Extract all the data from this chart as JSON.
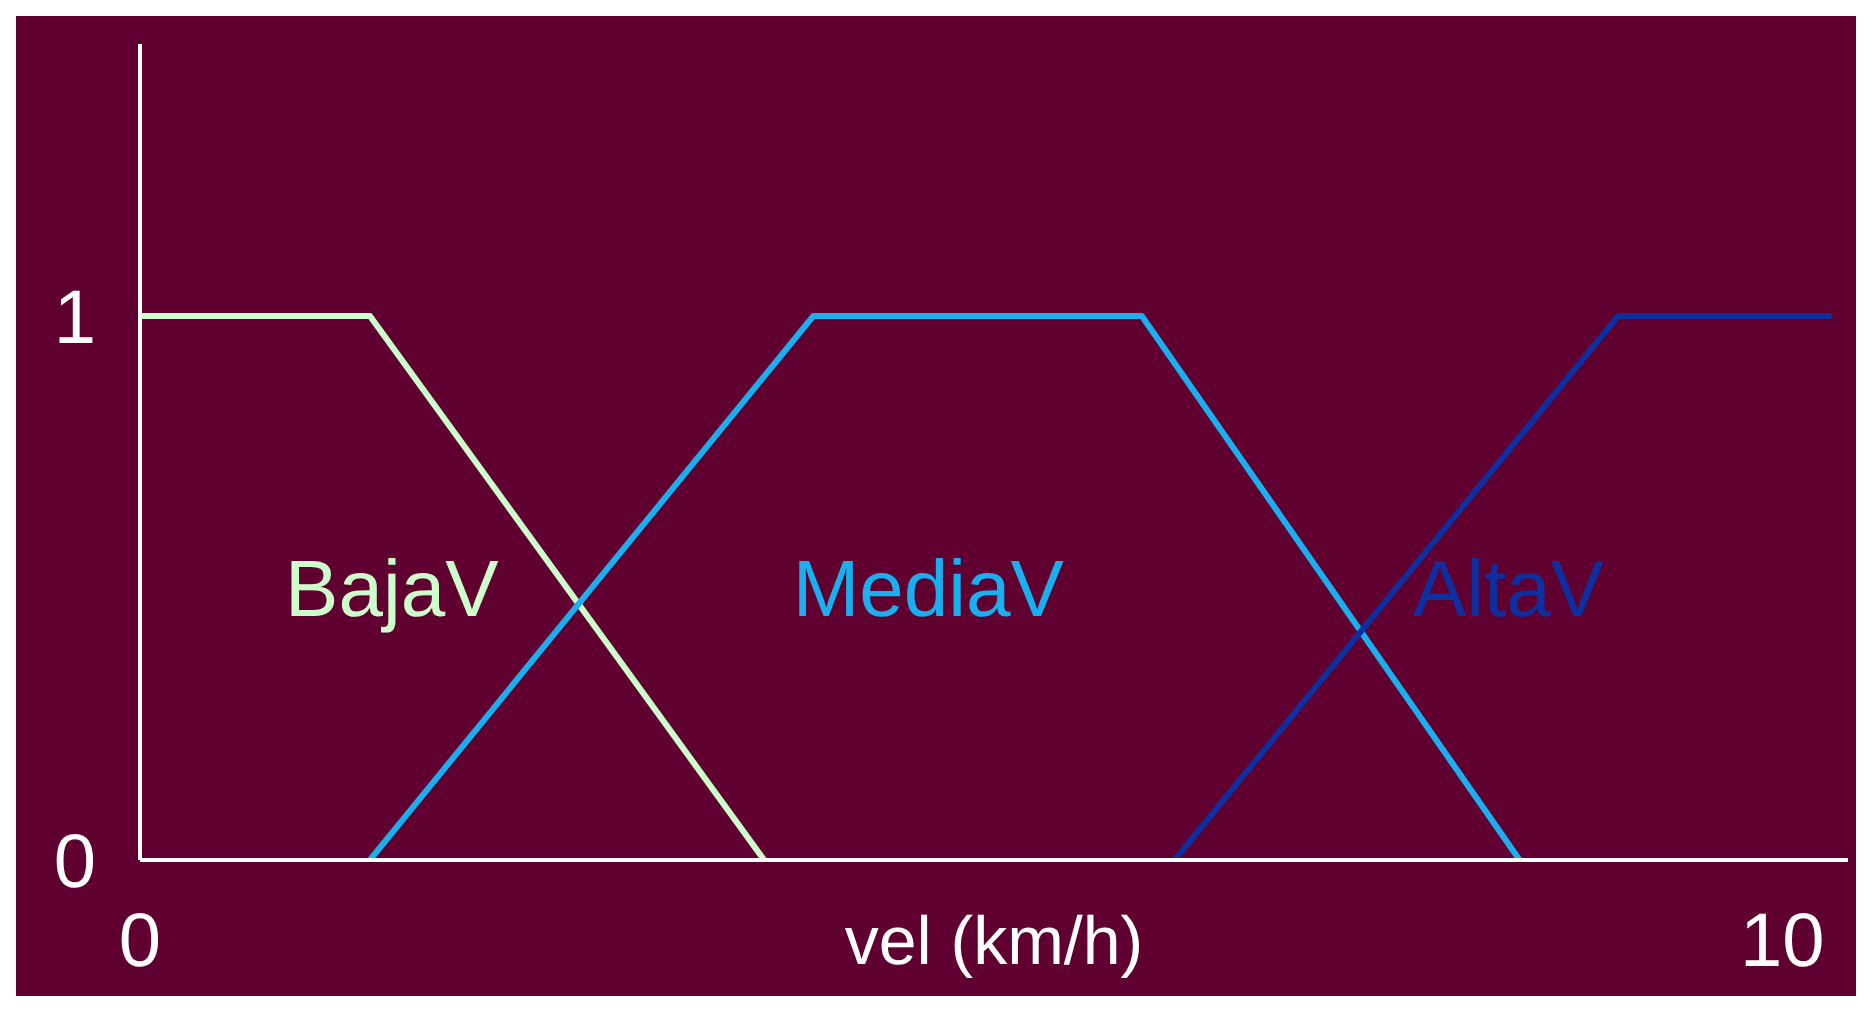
{
  "chart_data": {
    "type": "line",
    "xlabel": "vel (km/h)",
    "xlim": [
      0,
      10.4
    ],
    "xticks": [
      0,
      10
    ],
    "ylim": [
      0,
      1.5
    ],
    "yticks": [
      0,
      1
    ],
    "grid": false,
    "legend": false,
    "marker": "none",
    "line_style": "solid",
    "series": [
      {
        "name": "BajaV",
        "color": "#ccffcc",
        "x": [
          0,
          1.4,
          3.8
        ],
        "values": [
          1,
          1,
          0
        ]
      },
      {
        "name": "MediaV",
        "color": "#1ab0f0",
        "x": [
          1.4,
          4.1,
          6.1,
          8.4
        ],
        "values": [
          0,
          1,
          1,
          0
        ]
      },
      {
        "name": "AltaV",
        "color": "#0d2fa0",
        "x": [
          6.3,
          9,
          10.3
        ],
        "values": [
          0,
          1,
          1
        ]
      }
    ]
  }
}
